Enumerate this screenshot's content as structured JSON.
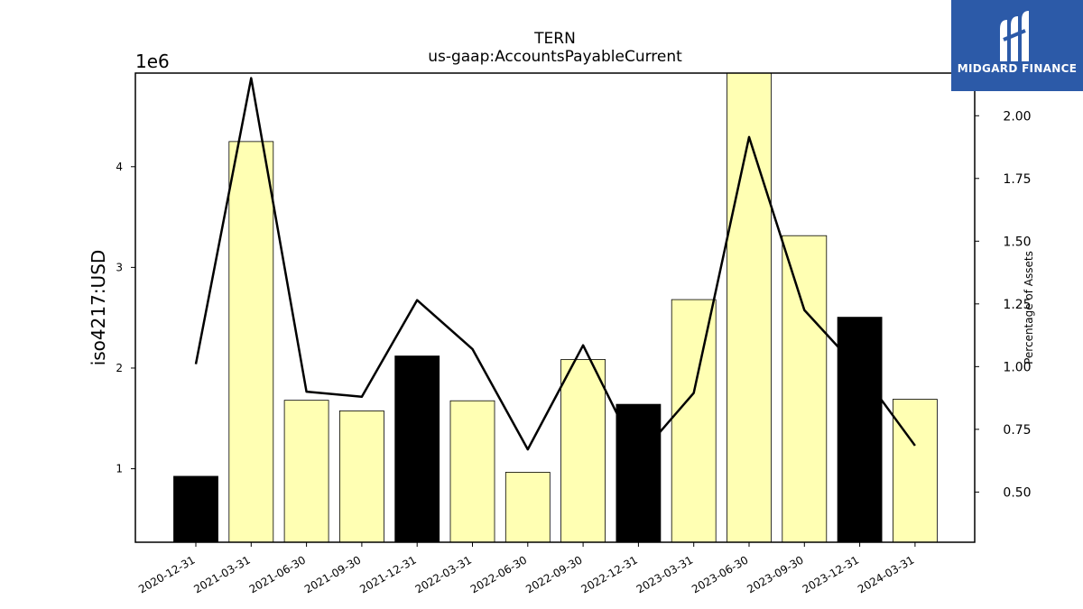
{
  "chart_data": {
    "type": "bar",
    "title": "TERN",
    "subtitle": "us-gaap:AccountsPayableCurrent",
    "ylabel": "iso4217:USD",
    "y_multiplier": "1e6",
    "y2label": "Percentage of Assets",
    "categories": [
      "2020-12-31",
      "2021-03-31",
      "2021-06-30",
      "2021-09-30",
      "2021-12-31",
      "2022-03-31",
      "2022-06-30",
      "2022-09-30",
      "2022-12-31",
      "2023-03-31",
      "2023-06-30",
      "2023-09-30",
      "2023-12-31",
      "2024-03-31"
    ],
    "values": [
      925000,
      4250000,
      1680000,
      1575000,
      2120000,
      1675000,
      965000,
      2085000,
      1640000,
      2680000,
      4930000,
      3315000,
      2505000,
      1690000
    ],
    "bar_colors": [
      "#000000",
      "#ffffb3",
      "#ffffb3",
      "#ffffb3",
      "#000000",
      "#ffffb3",
      "#ffffb3",
      "#ffffb3",
      "#000000",
      "#ffffb3",
      "#ffffb3",
      "#ffffb3",
      "#000000",
      "#ffffb3"
    ],
    "line_series": {
      "name": "Percentage of Assets",
      "values": [
        1.01,
        2.15,
        0.9,
        0.88,
        1.265,
        1.07,
        0.67,
        1.085,
        0.64,
        0.895,
        1.915,
        1.225,
        0.985,
        0.685
      ]
    },
    "ylim": [
      270000,
      4930000
    ],
    "y_ticks": [
      1,
      2,
      3,
      4
    ],
    "y2lim": [
      0.3,
      2.17
    ],
    "y2_ticks": [
      "0.50",
      "0.75",
      "1.00",
      "1.25",
      "1.50",
      "1.75",
      "2.00"
    ],
    "grid": false
  },
  "logo": {
    "text": "MIDGARD FINANCE",
    "background": "#2c5aa8"
  }
}
